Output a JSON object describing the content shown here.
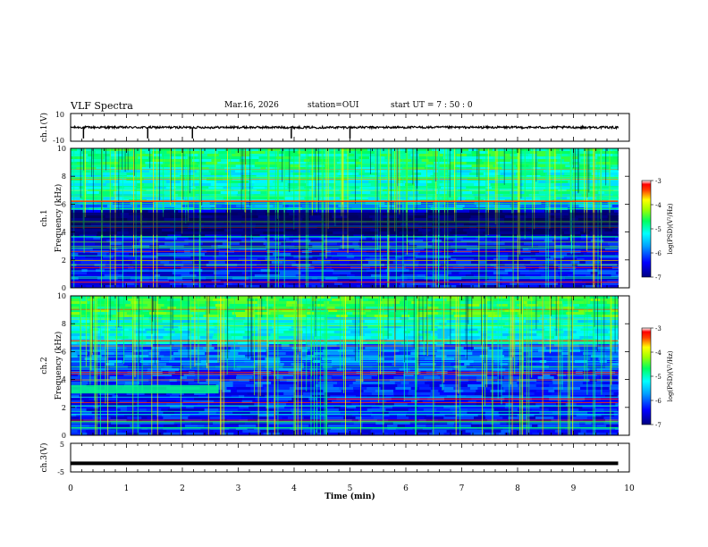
{
  "header": {
    "title": "VLF Spectra",
    "date": "Mar.16, 2026",
    "station": "station=OUI",
    "start": "start  UT =   7 : 50 : 0"
  },
  "colors": {
    "trace": "#000000",
    "axis": "#000000",
    "background": "#ffffff"
  },
  "chart_data": [
    {
      "type": "line",
      "name": "ch1_waveform",
      "ylabel": "ch.1(V)",
      "ylim": [
        -10,
        10
      ],
      "y_tick_labels": [
        "10",
        "-10"
      ],
      "x": [
        0,
        1,
        2,
        3,
        4,
        5,
        6,
        7,
        8,
        9,
        9.8
      ],
      "values": [
        0,
        0,
        0,
        0,
        0,
        0,
        0,
        0,
        0,
        0,
        0
      ],
      "spike_times": [
        0.23,
        1.38,
        2.18,
        3.95,
        5.0
      ],
      "xlim": [
        0,
        10
      ]
    },
    {
      "type": "heatmap",
      "name": "ch1_spectrogram",
      "ylabel": "Frequency (kHz)",
      "channel_label": "ch.1",
      "ylim": [
        0,
        10
      ],
      "y_ticks": [
        "0",
        "2",
        "4",
        "6",
        "8",
        "10"
      ],
      "xlim": [
        0,
        10
      ],
      "data_end_minute": 9.8,
      "colorbar": {
        "label": "log(PSD)(V²/Hz)",
        "range": [
          -7,
          -3
        ],
        "ticks": [
          "-3",
          "-4",
          "-5",
          "-6",
          "-7"
        ]
      }
    },
    {
      "type": "heatmap",
      "name": "ch2_spectrogram",
      "ylabel": "Frequency (kHz)",
      "channel_label": "ch.2",
      "ylim": [
        0,
        10
      ],
      "y_ticks": [
        "0",
        "2",
        "4",
        "6",
        "8",
        "10"
      ],
      "xlim": [
        0,
        10
      ],
      "data_end_minute": 9.8,
      "colorbar": {
        "label": "log(PSD)(V²/Hz)",
        "range": [
          -7,
          -3
        ],
        "ticks": [
          "-3",
          "-4",
          "-5",
          "-6",
          "-7"
        ]
      }
    },
    {
      "type": "line",
      "name": "ch3_waveform",
      "ylabel": "ch.3(V)",
      "ylim": [
        -5,
        5
      ],
      "y_tick_labels": [
        "5",
        "-5"
      ],
      "x": [
        0,
        9.8
      ],
      "values": [
        -2.0,
        -2.0
      ],
      "xlim": [
        0,
        10
      ]
    }
  ],
  "x_axis": {
    "label": "Time (min)",
    "tick_labels": [
      "0",
      "1",
      "2",
      "3",
      "4",
      "5",
      "6",
      "7",
      "8",
      "9",
      "10"
    ]
  }
}
